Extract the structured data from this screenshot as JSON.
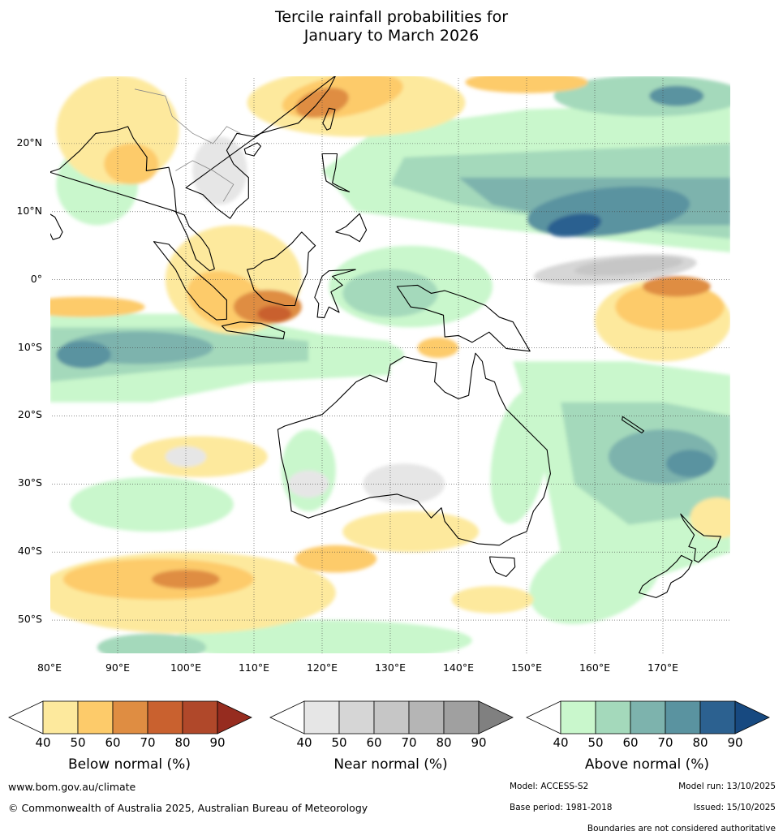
{
  "title_line1": "Tercile rainfall probabilities for",
  "title_line2": "January to March 2026",
  "map": {
    "region": "Australia, Indian Ocean and Western Pacific",
    "lon_min": 80,
    "lon_max": 180,
    "lat_min": -55,
    "lat_max": 30,
    "lat_labels": [
      "20°N",
      "10°N",
      "0°",
      "10°S",
      "20°S",
      "30°S",
      "40°S",
      "50°S"
    ],
    "lat_values": [
      20,
      10,
      0,
      -10,
      -20,
      -30,
      -40,
      -50
    ],
    "lon_labels": [
      "80°E",
      "90°E",
      "100°E",
      "110°E",
      "120°E",
      "130°E",
      "140°E",
      "150°E",
      "160°E",
      "170°E"
    ],
    "lon_values": [
      80,
      90,
      100,
      110,
      120,
      130,
      140,
      150,
      160,
      170
    ],
    "colors": {
      "below_40": "#fde99d",
      "below_50": "#fdcb6a",
      "below_60": "#df8d42",
      "below_70": "#c9612f",
      "below_80": "#b0482a",
      "below_90": "#962c1f",
      "near_40": "#e6e6e6",
      "near_50": "#d6d6d6",
      "near_60": "#c6c6c6",
      "above_40": "#c9f7cc",
      "above_50": "#a4d9bb",
      "above_60": "#7db3ad",
      "above_70": "#5a93a0",
      "above_80": "#2c6190",
      "above_90": "#174980",
      "ocean": "#ffffff",
      "coast": "#000000",
      "border": "#888888"
    }
  },
  "legends": [
    {
      "title": "Below normal (%)",
      "ticks": [
        "40",
        "50",
        "60",
        "70",
        "80",
        "90"
      ],
      "colors": [
        "#fde99d",
        "#fdcb6a",
        "#df8d42",
        "#c9612f",
        "#b0482a",
        "#962c1f"
      ]
    },
    {
      "title": "Near normal (%)",
      "ticks": [
        "40",
        "50",
        "60",
        "70",
        "80",
        "90"
      ],
      "colors": [
        "#e6e6e6",
        "#d6d6d6",
        "#c6c6c6",
        "#b5b5b5",
        "#a0a0a0",
        "#808080"
      ]
    },
    {
      "title": "Above normal (%)",
      "ticks": [
        "40",
        "50",
        "60",
        "70",
        "80",
        "90"
      ],
      "colors": [
        "#c9f7cc",
        "#a4d9bb",
        "#7db3ad",
        "#5a93a0",
        "#2c6190",
        "#174980"
      ]
    }
  ],
  "footer": {
    "website": "www.bom.gov.au/climate",
    "copyright": "© Commonwealth of Australia 2025, Australian Bureau of Meteorology",
    "model": "Model: ACCESS-S2",
    "model_run": "Model run: 13/10/2025",
    "base_period": "Base period: 1981-2018",
    "issued": "Issued: 15/10/2025",
    "disclaimer": "Boundaries are not considered authoritative"
  }
}
